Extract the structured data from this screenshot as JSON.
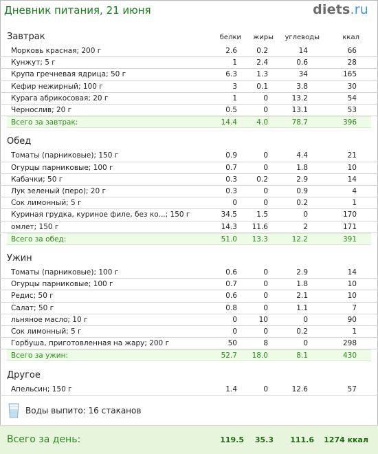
{
  "header": {
    "title": "Дневник питания, 21 июня",
    "logo_main": "diets",
    "logo_tld": ".ru"
  },
  "columns": [
    "белки",
    "жиры",
    "углеводы",
    "ккал"
  ],
  "sections": [
    {
      "title": "Завтрак",
      "show_columns": true,
      "items": [
        {
          "name": "Морковь красная; 200 г",
          "b": "2.6",
          "f": "0.2",
          "c": "14",
          "k": "66"
        },
        {
          "name": "Кунжут; 5 г",
          "b": "1",
          "f": "2.4",
          "c": "0.6",
          "k": "28"
        },
        {
          "name": "Крупа гречневая ядрица; 50 г",
          "b": "6.3",
          "f": "1.3",
          "c": "34",
          "k": "165"
        },
        {
          "name": "Кефир нежирный; 100 г",
          "b": "3",
          "f": "0.1",
          "c": "3.8",
          "k": "30"
        },
        {
          "name": "Курага абрикосовая; 20 г",
          "b": "1",
          "f": "0",
          "c": "13.2",
          "k": "54"
        },
        {
          "name": "Чернослив; 20 г",
          "b": "0.5",
          "f": "0",
          "c": "13.1",
          "k": "53"
        }
      ],
      "total": {
        "name": "Всего за завтрак:",
        "b": "14.4",
        "f": "4.0",
        "c": "78.7",
        "k": "396"
      }
    },
    {
      "title": "Обед",
      "show_columns": false,
      "items": [
        {
          "name": "Томаты (парниковые); 150 г",
          "b": "0.9",
          "f": "0",
          "c": "4.4",
          "k": "21"
        },
        {
          "name": "Огурцы парниковые; 100 г",
          "b": "0.7",
          "f": "0",
          "c": "1.8",
          "k": "10"
        },
        {
          "name": "Кабачки; 50 г",
          "b": "0.3",
          "f": "0.2",
          "c": "2.9",
          "k": "14"
        },
        {
          "name": "Лук зеленый (перо); 20 г",
          "b": "0.3",
          "f": "0",
          "c": "0.9",
          "k": "4"
        },
        {
          "name": "Сок лимонный; 5 г",
          "b": "0",
          "f": "0",
          "c": "0.2",
          "k": "1"
        },
        {
          "name": "Куриная грудка, куриное филе, без ко...; 150 г",
          "b": "34.5",
          "f": "1.5",
          "c": "0",
          "k": "170"
        },
        {
          "name": "омлет; 150 г",
          "b": "14.3",
          "f": "11.6",
          "c": "2",
          "k": "171"
        }
      ],
      "total": {
        "name": "Всего за обед:",
        "b": "51.0",
        "f": "13.3",
        "c": "12.2",
        "k": "391"
      }
    },
    {
      "title": "Ужин",
      "show_columns": false,
      "items": [
        {
          "name": "Томаты (парниковые); 100 г",
          "b": "0.6",
          "f": "0",
          "c": "2.9",
          "k": "14"
        },
        {
          "name": "Огурцы парниковые; 100 г",
          "b": "0.7",
          "f": "0",
          "c": "1.8",
          "k": "10"
        },
        {
          "name": "Редис; 50 г",
          "b": "0.6",
          "f": "0",
          "c": "2.1",
          "k": "10"
        },
        {
          "name": "Салат; 50 г",
          "b": "0.8",
          "f": "0",
          "c": "1.1",
          "k": "7"
        },
        {
          "name": "льняное масло; 10 г",
          "b": "0",
          "f": "10",
          "c": "0",
          "k": "90"
        },
        {
          "name": "Сок лимонный; 5 г",
          "b": "0",
          "f": "0",
          "c": "0.2",
          "k": "1"
        },
        {
          "name": "Горбуша, приготовленная на жару; 200 г",
          "b": "50",
          "f": "8",
          "c": "0",
          "k": "298"
        }
      ],
      "total": {
        "name": "Всего за ужин:",
        "b": "52.7",
        "f": "18.0",
        "c": "8.1",
        "k": "430"
      }
    },
    {
      "title": "Другое",
      "show_columns": false,
      "items": [
        {
          "name": "Апельсин; 150 г",
          "b": "1.4",
          "f": "0",
          "c": "12.6",
          "k": "57"
        }
      ],
      "total": null
    }
  ],
  "water": {
    "icon": "water-glass-icon",
    "text": "Воды выпито: 16 стаканов"
  },
  "day_total": {
    "label": "Всего за день:",
    "b": "119.5",
    "f": "35.3",
    "c": "111.6",
    "k": "1274 ккал"
  },
  "colors": {
    "title_green": "#1a7f1a",
    "total_text": "#2c8a1c",
    "total_bg": "#eefbe7",
    "day_total_bg": "#e6f5dc",
    "logo_tld": "#3b9ad9"
  }
}
